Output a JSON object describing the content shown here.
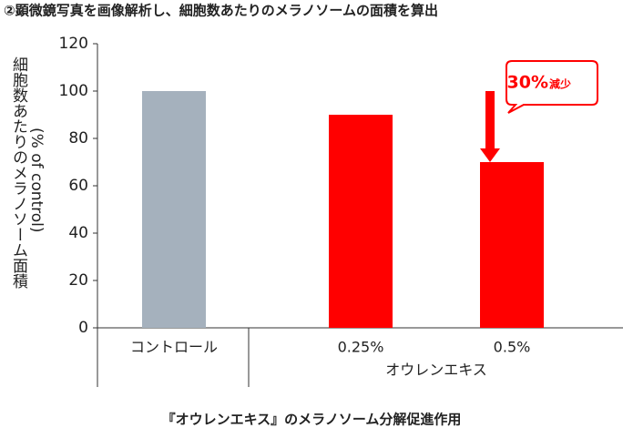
{
  "chart_data": {
    "type": "bar",
    "title": "②顕微鏡写真を画像解析し、細胞数あたりのメラノソームの面積を算出",
    "y_label": "細胞数あたりのメラノソーム面積",
    "y_label_unit": "(% of control)",
    "categories": [
      "コントロール",
      "0.25%",
      "0.5%"
    ],
    "group_label": "オウレンエキス",
    "values": [
      100,
      90,
      70
    ],
    "colors": [
      "#a5b1bd",
      "#ff0000",
      "#ff0000"
    ],
    "ylim": [
      0,
      120
    ],
    "yticks": [
      0,
      20,
      40,
      60,
      80,
      100,
      120
    ],
    "grid": false,
    "annotation": [
      "30%",
      "減少"
    ],
    "caption": "『オウレンエキス』のメラノソーム分解促進作用"
  }
}
